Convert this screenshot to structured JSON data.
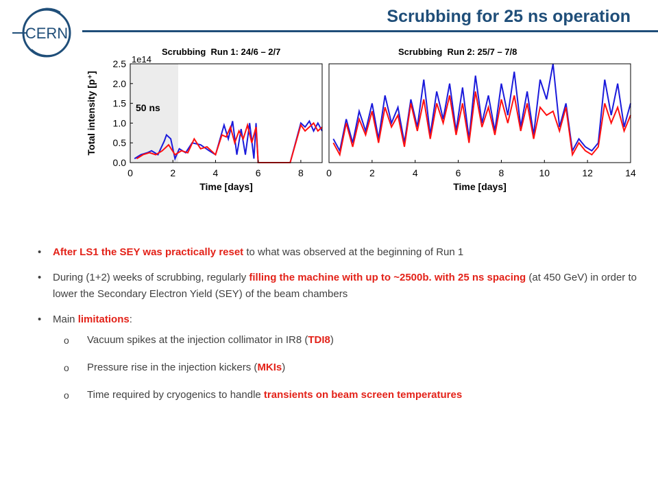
{
  "logo": {
    "text": "CERN"
  },
  "title": "Scrubbing for 25 ns operation",
  "runs": [
    {
      "label": "Scrubbing  Run 1: 24/6 – 2/7"
    },
    {
      "label": "Scrubbing  Run 2: 25/7 – 7/8"
    }
  ],
  "chart_data": [
    {
      "type": "line",
      "title": "Scrubbing  Run 1: 24/6 – 2/7",
      "xlabel": "Time [days]",
      "ylabel": "Total intensity [p⁺]",
      "y_multiplier": "1e14",
      "xlim": [
        0,
        9
      ],
      "ylim": [
        0,
        2.5
      ],
      "x_ticks": [
        "0",
        "2",
        "4",
        "6",
        "8"
      ],
      "y_ticks": [
        "0.0",
        "0.5",
        "1.0",
        "1.5",
        "2.0",
        "2.5"
      ],
      "grid": false,
      "shaded_region": {
        "label": "50 ns",
        "x": [
          0,
          2.25
        ]
      },
      "series": [
        {
          "color": "#1a1adb",
          "x": [
            0.2,
            0.5,
            0.8,
            1.0,
            1.3,
            1.6,
            1.7,
            1.9,
            2.1,
            2.3,
            2.6,
            2.9,
            3.3,
            3.7,
            4.0,
            4.4,
            4.6,
            4.8,
            5.0,
            5.2,
            5.4,
            5.6,
            5.8,
            5.9,
            6.0,
            6.5,
            7.0,
            7.5,
            8.0,
            8.2,
            8.4,
            8.6,
            8.8,
            9.0
          ],
          "y": [
            0.1,
            0.2,
            0.25,
            0.3,
            0.2,
            0.55,
            0.7,
            0.6,
            0.1,
            0.35,
            0.25,
            0.5,
            0.45,
            0.3,
            0.2,
            0.95,
            0.6,
            1.05,
            0.2,
            0.85,
            0.2,
            1.0,
            0.1,
            1.0,
            0.0,
            0.0,
            0.0,
            0.0,
            1.0,
            0.9,
            1.05,
            0.8,
            1.0,
            0.8
          ]
        },
        {
          "color": "#ff1010",
          "x": [
            0.3,
            0.6,
            0.9,
            1.2,
            1.5,
            1.8,
            2.1,
            2.4,
            2.7,
            3.0,
            3.3,
            3.6,
            4.0,
            4.3,
            4.5,
            4.7,
            4.9,
            5.1,
            5.3,
            5.5,
            5.7,
            5.9,
            6.0,
            6.5,
            7.0,
            7.5,
            8.0,
            8.2,
            8.4,
            8.6,
            8.8,
            9.0
          ],
          "y": [
            0.1,
            0.2,
            0.25,
            0.2,
            0.3,
            0.45,
            0.2,
            0.3,
            0.25,
            0.6,
            0.35,
            0.4,
            0.2,
            0.7,
            0.65,
            0.9,
            0.5,
            0.8,
            0.6,
            0.95,
            0.5,
            0.9,
            0.0,
            0.0,
            0.0,
            0.0,
            0.95,
            0.8,
            0.9,
            1.0,
            0.8,
            0.9
          ]
        }
      ]
    },
    {
      "type": "line",
      "title": "Scrubbing  Run 2: 25/7 – 7/8",
      "xlabel": "Time [days]",
      "ylabel": "",
      "xlim": [
        0,
        14
      ],
      "ylim": [
        0,
        2.5
      ],
      "x_ticks": [
        "0",
        "2",
        "4",
        "6",
        "8",
        "10",
        "12",
        "14"
      ],
      "grid": false,
      "series": [
        {
          "color": "#1a1adb",
          "x": [
            0.2,
            0.5,
            0.8,
            1.1,
            1.4,
            1.7,
            2.0,
            2.3,
            2.6,
            2.9,
            3.2,
            3.5,
            3.8,
            4.1,
            4.4,
            4.7,
            5.0,
            5.3,
            5.6,
            5.9,
            6.2,
            6.5,
            6.8,
            7.1,
            7.4,
            7.7,
            8.0,
            8.3,
            8.6,
            8.9,
            9.2,
            9.5,
            9.8,
            10.1,
            10.4,
            10.7,
            11.0,
            11.3,
            11.6,
            11.9,
            12.2,
            12.5,
            12.8,
            13.1,
            13.4,
            13.7,
            14.0
          ],
          "y": [
            0.6,
            0.3,
            1.1,
            0.5,
            1.3,
            0.8,
            1.5,
            0.6,
            1.7,
            1.0,
            1.4,
            0.5,
            1.6,
            0.9,
            2.1,
            0.7,
            1.8,
            1.1,
            2.0,
            0.8,
            1.9,
            0.6,
            2.2,
            1.0,
            1.7,
            0.8,
            2.0,
            1.2,
            2.3,
            0.9,
            1.8,
            0.7,
            2.1,
            1.6,
            2.5,
            0.9,
            1.5,
            0.3,
            0.6,
            0.4,
            0.3,
            0.5,
            2.1,
            1.2,
            2.0,
            0.9,
            1.5
          ]
        },
        {
          "color": "#ff1010",
          "x": [
            0.2,
            0.5,
            0.8,
            1.1,
            1.4,
            1.7,
            2.0,
            2.3,
            2.6,
            2.9,
            3.2,
            3.5,
            3.8,
            4.1,
            4.4,
            4.7,
            5.0,
            5.3,
            5.6,
            5.9,
            6.2,
            6.5,
            6.8,
            7.1,
            7.4,
            7.7,
            8.0,
            8.3,
            8.6,
            8.9,
            9.2,
            9.5,
            9.8,
            10.1,
            10.4,
            10.7,
            11.0,
            11.3,
            11.6,
            11.9,
            12.2,
            12.5,
            12.8,
            13.1,
            13.4,
            13.7,
            14.0
          ],
          "y": [
            0.5,
            0.2,
            1.0,
            0.4,
            1.1,
            0.7,
            1.3,
            0.5,
            1.4,
            0.9,
            1.2,
            0.4,
            1.5,
            0.8,
            1.6,
            0.6,
            1.5,
            1.0,
            1.7,
            0.7,
            1.5,
            0.5,
            1.8,
            0.9,
            1.4,
            0.7,
            1.6,
            1.0,
            1.7,
            0.8,
            1.5,
            0.6,
            1.4,
            1.2,
            1.3,
            0.8,
            1.4,
            0.2,
            0.5,
            0.3,
            0.2,
            0.4,
            1.5,
            1.0,
            1.4,
            0.8,
            1.2
          ]
        }
      ]
    }
  ],
  "bullets": [
    {
      "hl": "After LS1 the SEY was practically reset",
      "rest": " to what was observed at the beginning of Run 1"
    },
    {
      "pre": "During (1+2) weeks of scrubbing, regularly ",
      "hl": "filling the machine with up to ~2500b. with 25 ns spacing",
      "rest": " (at 450 GeV) in order to lower the Secondary Electron Yield (SEY) of the beam chambers"
    },
    {
      "pre": "Main ",
      "hl": "limitations",
      "rest": ":"
    }
  ],
  "sub_bullets": [
    {
      "pre": "Vacuum spikes at the injection collimator in IR8 (",
      "hl": "TDI8",
      "rest": ")"
    },
    {
      "pre": "Pressure rise in the injection kickers (",
      "hl": "MKIs",
      "rest": ")"
    },
    {
      "pre": "Time required by cryogenics to handle ",
      "hl": "transients on beam screen temperatures",
      "rest": ""
    }
  ]
}
